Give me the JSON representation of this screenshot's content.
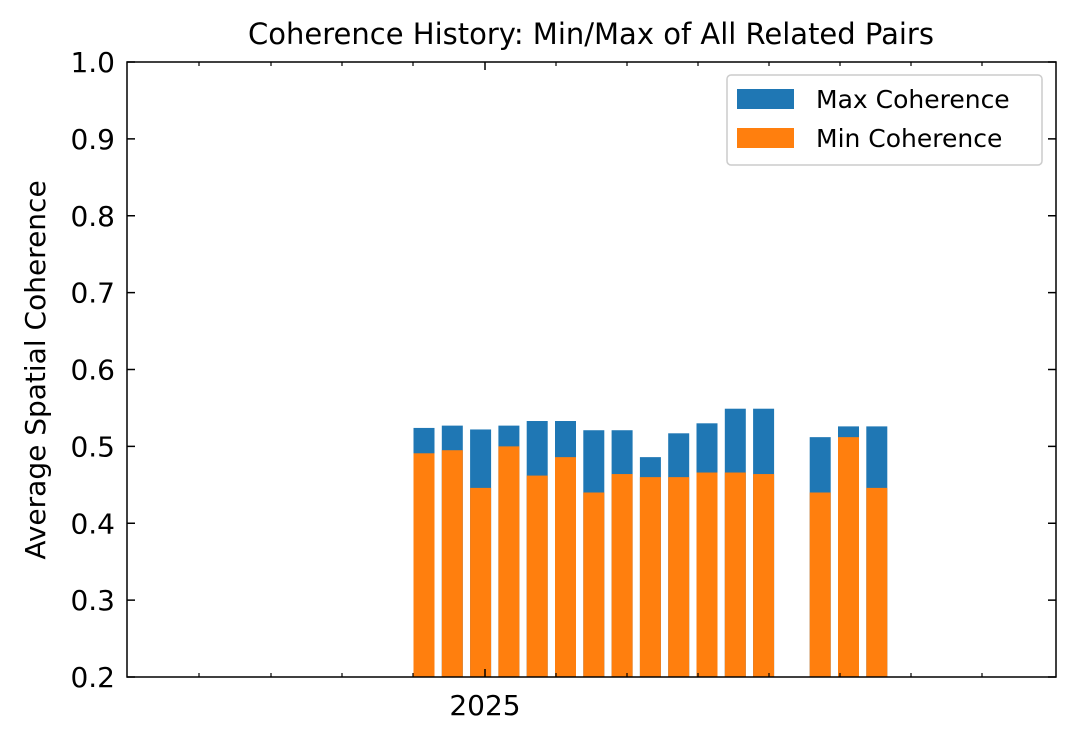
{
  "chart_data": {
    "type": "bar",
    "title": "Coherence History: Min/Max of All Related Pairs",
    "xlabel": "",
    "ylabel": "Average Spatial Coherence",
    "ylim": [
      0.2,
      1.0
    ],
    "yticks": [
      "0.2",
      "0.3",
      "0.4",
      "0.5",
      "0.6",
      "0.7",
      "0.8",
      "0.9",
      "1.0"
    ],
    "xtick_labels": [
      "2025"
    ],
    "grid": false,
    "legend_position": "top-right",
    "colors": {
      "max": "#1f77b4",
      "min": "#ff7f0e"
    },
    "series": [
      {
        "name": "Max Coherence",
        "values": [
          0.524,
          0.527,
          0.522,
          0.527,
          0.533,
          0.533,
          0.521,
          0.521,
          0.486,
          0.517,
          0.53,
          0.549,
          0.549,
          0.512,
          0.526,
          0.526
        ]
      },
      {
        "name": "Min Coherence",
        "values": [
          0.491,
          0.495,
          0.446,
          0.5,
          0.462,
          0.486,
          0.44,
          0.464,
          0.46,
          0.46,
          0.466,
          0.466,
          0.464,
          0.44,
          0.512,
          0.446
        ]
      }
    ]
  }
}
